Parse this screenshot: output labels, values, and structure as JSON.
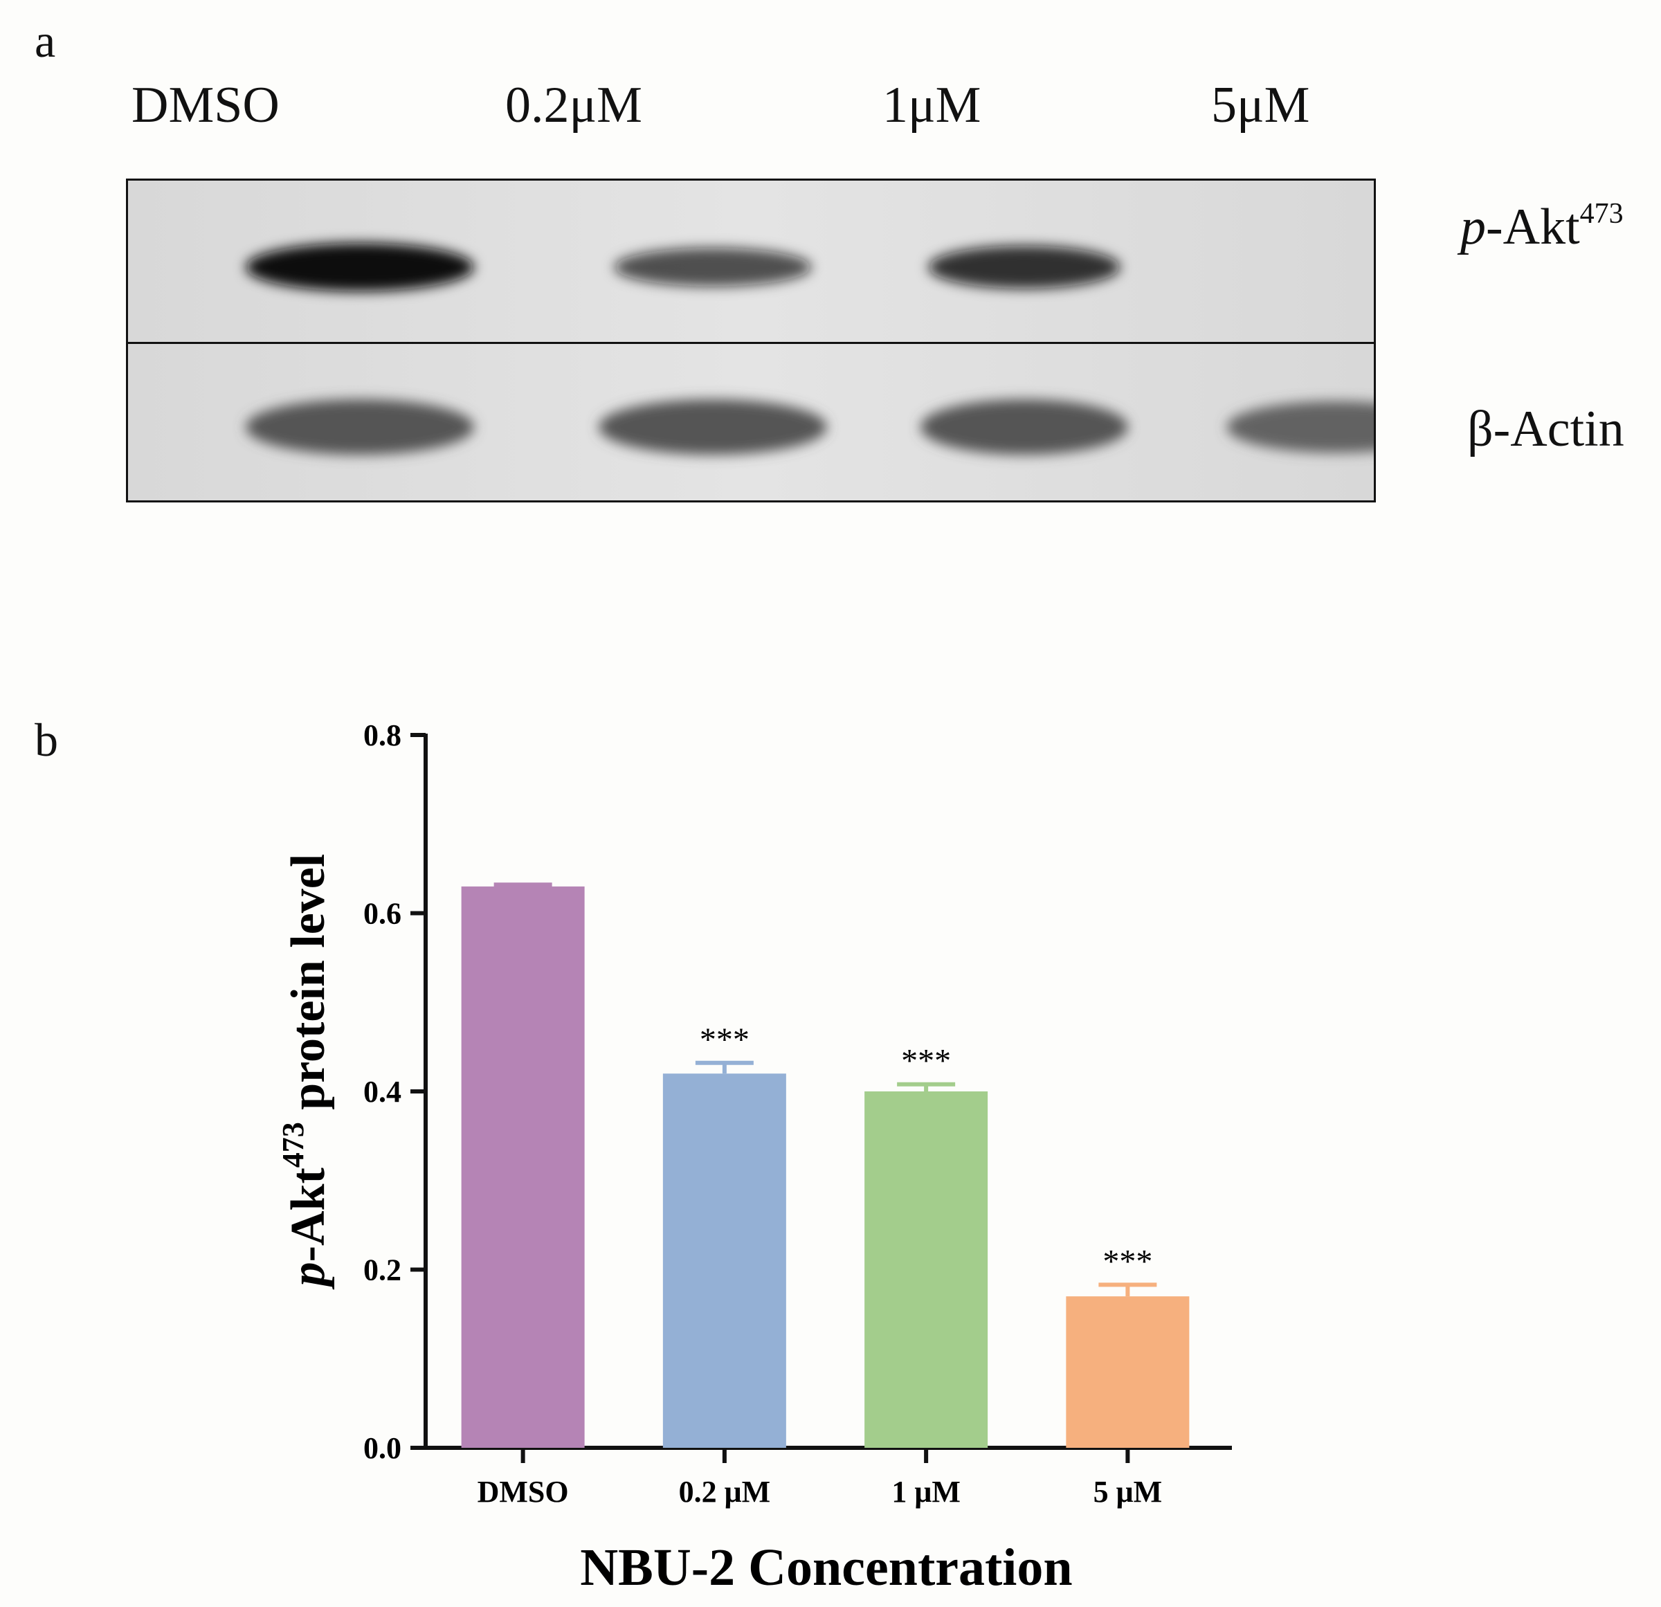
{
  "panel_a": {
    "label": "a",
    "lanes": [
      "DMSO",
      "0.2μM",
      "1μM",
      "5μM"
    ],
    "bands": [
      {
        "prefix": "p",
        "name": "-Akt",
        "superscript": "473"
      },
      {
        "prefix": "",
        "name": "β-Actin",
        "superscript": ""
      }
    ],
    "intensity": {
      "p_akt": [
        1.0,
        0.55,
        0.75,
        0.0
      ],
      "actin": [
        1.0,
        1.0,
        1.0,
        0.85
      ]
    },
    "colors": {
      "band_dark": "#0a0a0a",
      "band_actin": "#555555",
      "membrane_top": "#e4e4e4",
      "membrane_bottom": "#d8d8d8"
    }
  },
  "panel_b": {
    "label": "b",
    "chart_data": {
      "type": "bar",
      "categories": [
        "DMSO",
        "0.2 μM",
        "1 μM",
        "5 μM"
      ],
      "values": [
        0.63,
        0.42,
        0.4,
        0.17
      ],
      "errors": [
        0.002,
        0.012,
        0.008,
        0.013
      ],
      "annotations": [
        "",
        "***",
        "***",
        "***"
      ],
      "colors": [
        "#b584b5",
        "#94b0d5",
        "#a3cd8c",
        "#f6b07e"
      ],
      "ylim": [
        0,
        0.8
      ],
      "yticks": [
        "0.0",
        "0.2",
        "0.4",
        "0.6",
        "0.8"
      ],
      "xlabel": "NBU-2 Concentration",
      "ylabel": {
        "italic": "p",
        "main": "-Akt",
        "superscript": "473",
        "suffix": " protein level"
      }
    }
  }
}
